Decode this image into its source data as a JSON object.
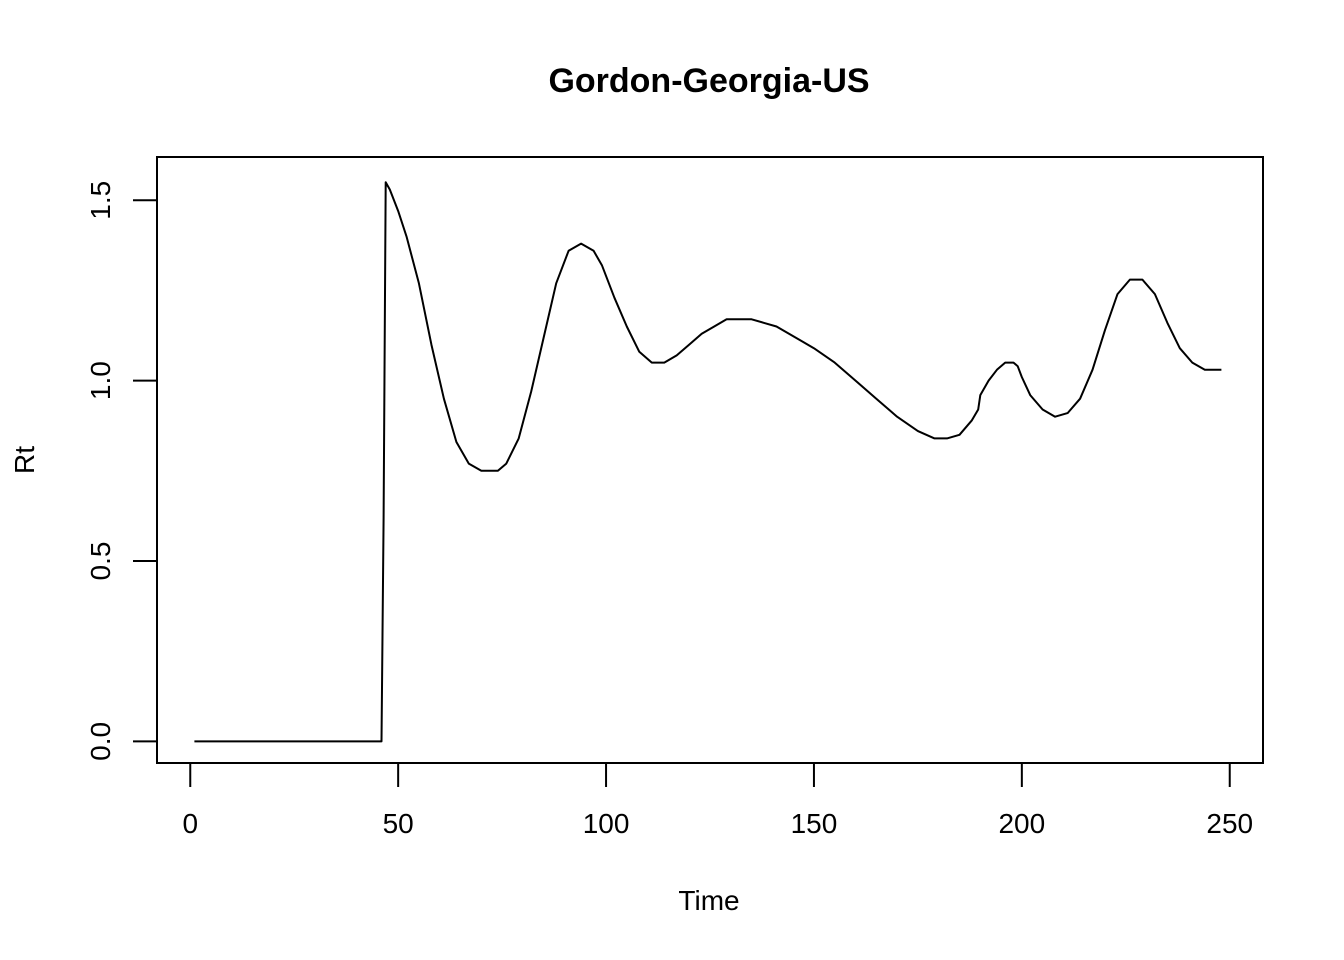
{
  "chart_data": {
    "type": "line",
    "title": "Gordon-Georgia-US",
    "xlabel": "Time",
    "ylabel": "Rt",
    "xlim": [
      -8,
      258
    ],
    "ylim": [
      -0.06,
      1.62
    ],
    "xticks": [
      0,
      50,
      100,
      150,
      200,
      250
    ],
    "xtick_labels": [
      "0",
      "50",
      "100",
      "150",
      "200",
      "250"
    ],
    "yticks": [
      0.0,
      0.5,
      1.0,
      1.5
    ],
    "ytick_labels": [
      "0.0",
      "0.5",
      "1.0",
      "1.5"
    ],
    "grid": false,
    "legend": "none",
    "series": [
      {
        "x": [
          1,
          10,
          20,
          30,
          40,
          46,
          46.5,
          47,
          48,
          50,
          52,
          55,
          58,
          61,
          64,
          67,
          70,
          73,
          74,
          76,
          79,
          82,
          85,
          88,
          91,
          94,
          97,
          99,
          102,
          105,
          108,
          111,
          114,
          117,
          120,
          123,
          126,
          129,
          132,
          135,
          138,
          141,
          144,
          147,
          150,
          155,
          160,
          165,
          170,
          175,
          179,
          182,
          185,
          188,
          189.5,
          190,
          192,
          194,
          196,
          198,
          199,
          200,
          202,
          205,
          208,
          211,
          214,
          217,
          220,
          223,
          226,
          229,
          232,
          235,
          238,
          241,
          244,
          246,
          248
        ],
        "y": [
          0.0,
          0.0,
          0.0,
          0.0,
          0.0,
          0.0,
          0.62,
          1.55,
          1.53,
          1.47,
          1.4,
          1.27,
          1.1,
          0.95,
          0.83,
          0.77,
          0.75,
          0.75,
          0.75,
          0.77,
          0.84,
          0.97,
          1.12,
          1.27,
          1.36,
          1.38,
          1.36,
          1.32,
          1.23,
          1.15,
          1.08,
          1.05,
          1.05,
          1.07,
          1.1,
          1.13,
          1.15,
          1.17,
          1.17,
          1.17,
          1.16,
          1.15,
          1.13,
          1.11,
          1.09,
          1.05,
          1.0,
          0.95,
          0.9,
          0.86,
          0.84,
          0.84,
          0.85,
          0.89,
          0.92,
          0.96,
          1.0,
          1.03,
          1.05,
          1.05,
          1.04,
          1.01,
          0.96,
          0.92,
          0.9,
          0.91,
          0.95,
          1.03,
          1.14,
          1.24,
          1.28,
          1.28,
          1.24,
          1.16,
          1.09,
          1.05,
          1.03,
          1.03,
          1.03
        ]
      }
    ]
  }
}
